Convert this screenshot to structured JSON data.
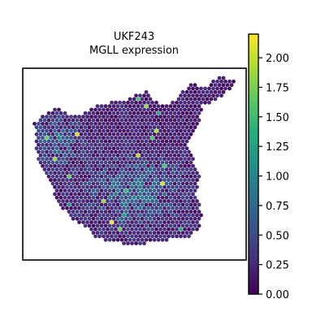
{
  "chart_data": {
    "type": "heatmap",
    "title_line1": "UKF243",
    "title_line2": "MGLL expression",
    "xlabel": "",
    "ylabel": "",
    "grid": false,
    "colormap": "viridis",
    "colorbar": {
      "min": 0.0,
      "max": 2.2,
      "ticks": [
        "0.00",
        "0.25",
        "0.50",
        "0.75",
        "1.00",
        "1.25",
        "1.50",
        "1.75",
        "2.00"
      ],
      "tick_values": [
        0.0,
        0.25,
        0.5,
        0.75,
        1.0,
        1.25,
        1.5,
        1.75,
        2.0
      ]
    },
    "value_distribution": {
      "low_color": "#440154",
      "mid_color": "#21918c",
      "high_color": "#fde725",
      "typical_range": [
        0.0,
        1.2
      ],
      "max_observed": 2.2
    }
  }
}
